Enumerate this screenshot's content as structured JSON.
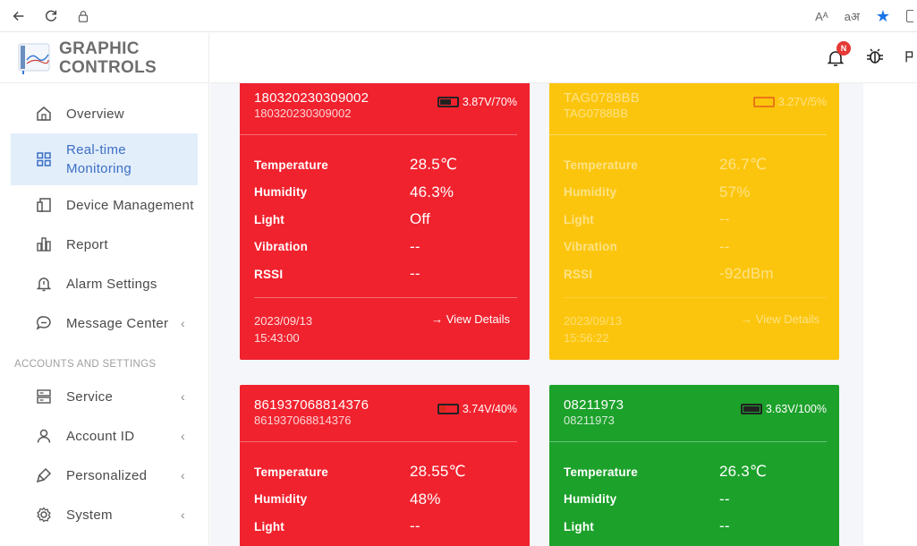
{
  "browser": {
    "icons": [
      "back-icon",
      "reload-icon",
      "lock-icon",
      "read-aloud-icon",
      "translate-icon",
      "favorite-star-icon"
    ],
    "read_aloud": "Aᴬ",
    "translate": "aअ",
    "accent": "#1a73e8"
  },
  "logo": {
    "line1": "GRAPHIC",
    "line2": "CONTROLS"
  },
  "sidebar": {
    "items": [
      {
        "label": "Overview",
        "icon": "home-icon",
        "active": false,
        "chevron": false
      },
      {
        "label": "Real-time Monitoring",
        "icon": "grid-icon",
        "active": true,
        "chevron": false
      },
      {
        "label": "Device Management",
        "icon": "device-icon",
        "active": false,
        "chevron": false
      },
      {
        "label": "Report",
        "icon": "bar-chart-icon",
        "active": false,
        "chevron": false
      },
      {
        "label": "Alarm Settings",
        "icon": "alarm-bell-icon",
        "active": false,
        "chevron": false
      },
      {
        "label": "Message Center",
        "icon": "chat-icon",
        "active": false,
        "chevron": true
      }
    ],
    "section_label": "ACCOUNTS AND SETTINGS",
    "settings_items": [
      {
        "label": "Service",
        "icon": "server-icon",
        "chevron": true
      },
      {
        "label": "Account ID",
        "icon": "user-icon",
        "chevron": true
      },
      {
        "label": "Personalized",
        "icon": "brush-icon",
        "chevron": true
      },
      {
        "label": "System",
        "icon": "gear-icon",
        "chevron": true
      }
    ]
  },
  "topbar": {
    "notification_badge": "N"
  },
  "cards": [
    {
      "color": "#f0222e",
      "title": "180320230309002",
      "subtitle": "180320230309002",
      "battery": "3.87V/70%",
      "battery_level": 70,
      "metrics": [
        {
          "label": "Temperature",
          "value": "28.5℃"
        },
        {
          "label": "Humidity",
          "value": "46.3%"
        },
        {
          "label": "Light",
          "value": "Off"
        },
        {
          "label": "Vibration",
          "value": "--"
        },
        {
          "label": "RSSI",
          "value": "--"
        }
      ],
      "date": "2023/09/13",
      "time": "15:43:00",
      "details": "→ View Details"
    },
    {
      "color": "#fcc50d",
      "title": "TAG0788BB",
      "subtitle": "TAG0788BB",
      "battery": "3.27V/5%",
      "battery_level": 5,
      "metrics": [
        {
          "label": "Temperature",
          "value": "26.7℃"
        },
        {
          "label": "Humidity",
          "value": "57%"
        },
        {
          "label": "Light",
          "value": "--"
        },
        {
          "label": "Vibration",
          "value": "--"
        },
        {
          "label": "RSSI",
          "value": "-92dBm"
        }
      ],
      "date": "2023/09/13",
      "time": "15:56:22",
      "details": "→ View Details"
    },
    {
      "color": "#f0222e",
      "title": "861937068814376",
      "subtitle": "861937068814376",
      "battery": "3.74V/40%",
      "battery_level": 40,
      "metrics": [
        {
          "label": "Temperature",
          "value": "28.55℃"
        },
        {
          "label": "Humidity",
          "value": "48%"
        },
        {
          "label": "Light",
          "value": "--"
        }
      ]
    },
    {
      "color": "#1ca12b",
      "title": "08211973",
      "subtitle": "08211973",
      "battery": "3.63V/100%",
      "battery_level": 100,
      "metrics": [
        {
          "label": "Temperature",
          "value": "26.3℃"
        },
        {
          "label": "Humidity",
          "value": "--"
        },
        {
          "label": "Light",
          "value": "--"
        }
      ]
    }
  ]
}
